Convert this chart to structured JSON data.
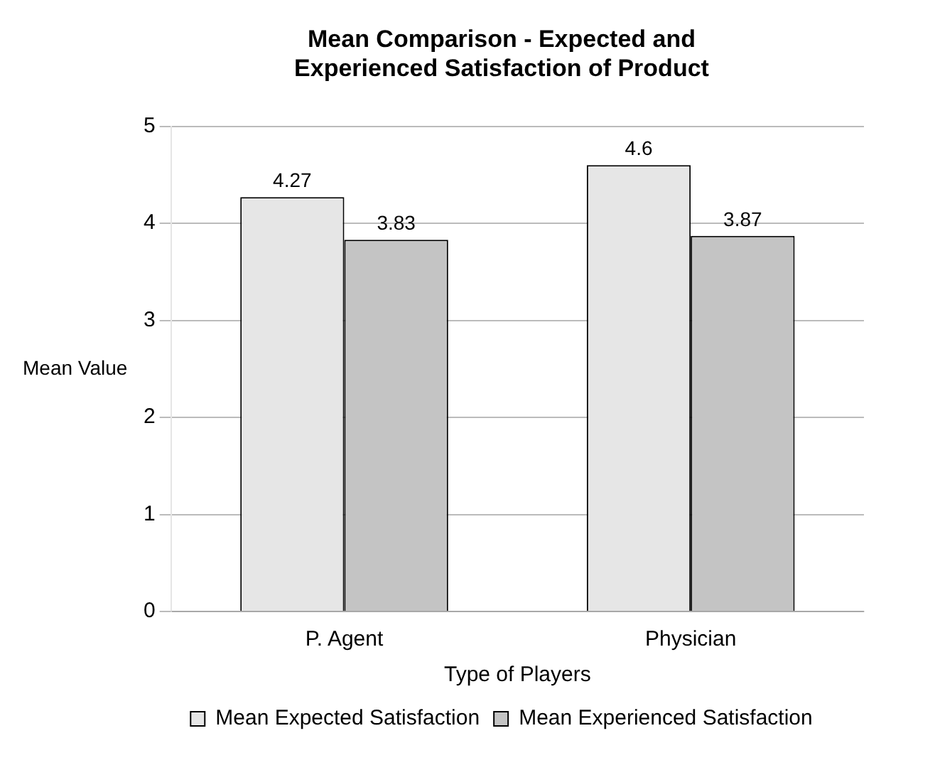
{
  "chart_data": {
    "type": "bar",
    "title": "Mean Comparison - Expected and Experienced Satisfaction of Product",
    "xlabel": "Type of Players",
    "ylabel": "Mean Value",
    "categories": [
      "P. Agent",
      "Physician"
    ],
    "series": [
      {
        "name": "Mean Expected Satisfaction",
        "color": "#e6e6e6",
        "values": [
          4.27,
          4.6
        ]
      },
      {
        "name": "Mean Experienced Satisfaction",
        "color": "#c4c4c4",
        "values": [
          3.83,
          3.87
        ]
      }
    ],
    "ylim": [
      0,
      5
    ],
    "yticks": [
      0,
      1,
      2,
      3,
      4,
      5
    ],
    "grid": "y",
    "legend": "bottom",
    "data_labels": true
  }
}
